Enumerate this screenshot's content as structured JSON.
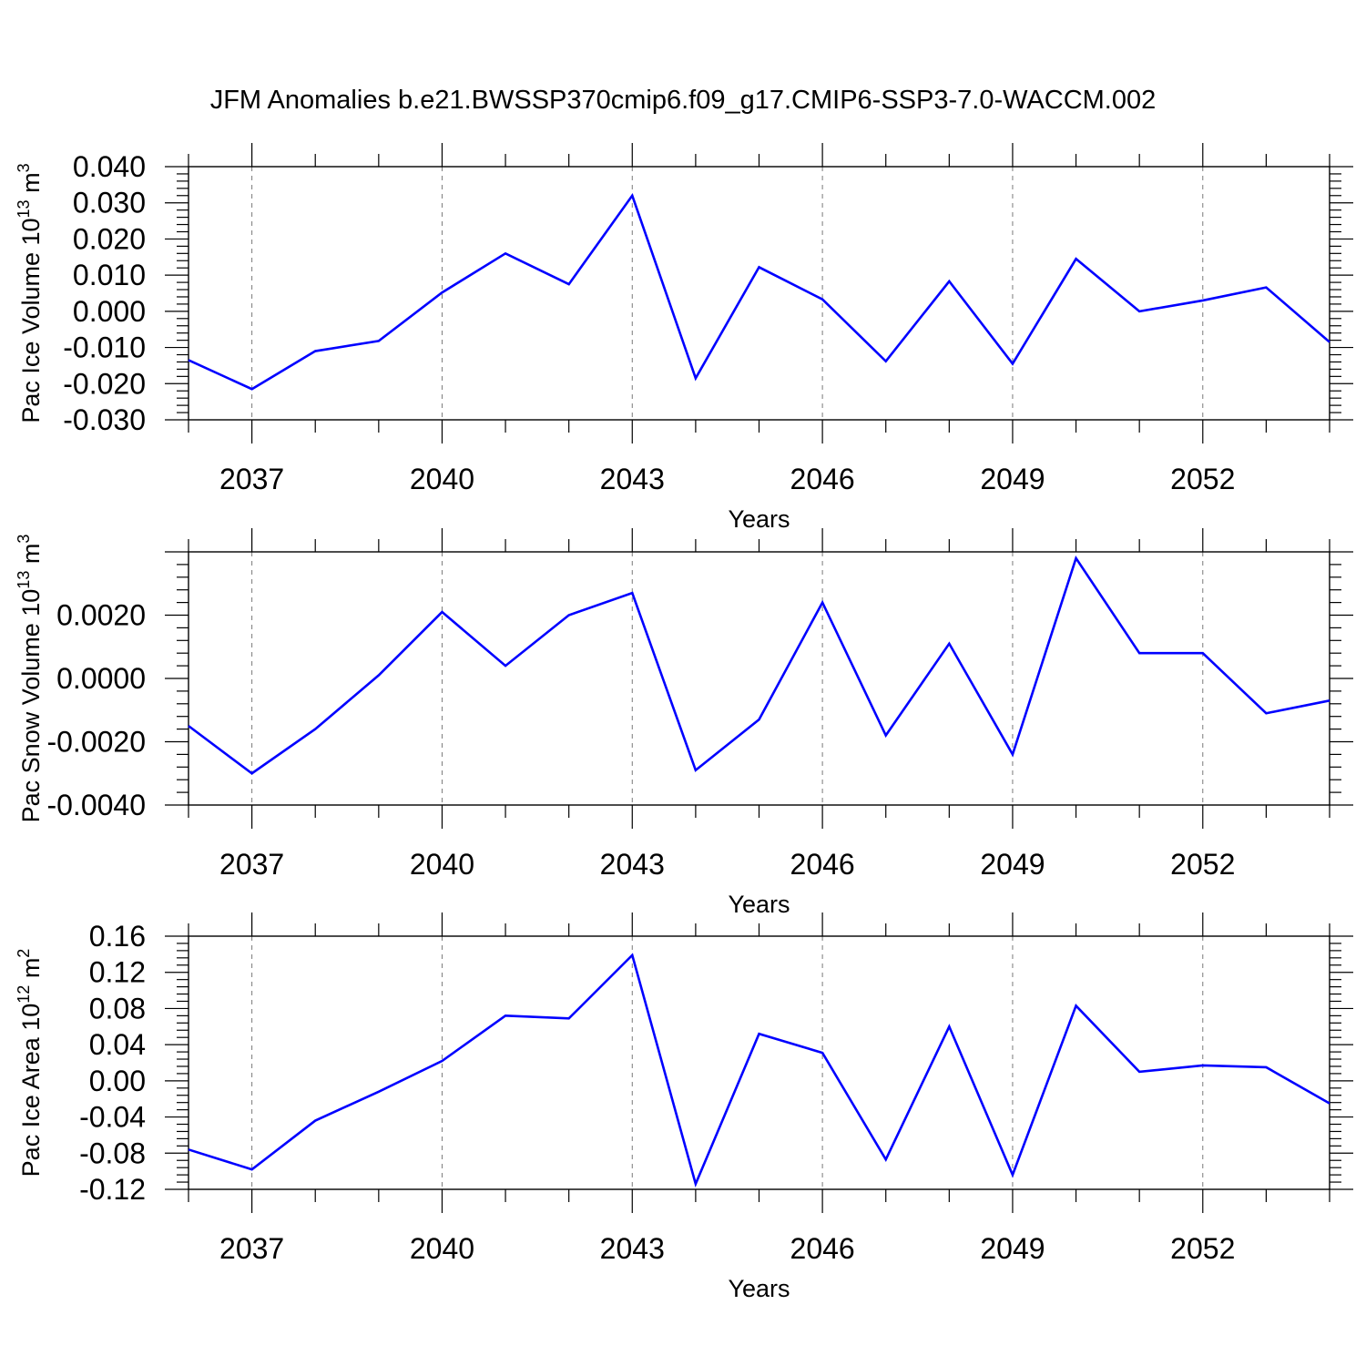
{
  "title": "JFM Anomalies b.e21.BWSSP370cmip6.f09_g17.CMIP6-SSP3-7.0-WACCM.002",
  "line_color": "#0000ff",
  "chart_data": [
    {
      "type": "line",
      "ylabel_text": "Pac Ice Volume 10",
      "ylabel_exp": "13",
      "ylabel_unit": " m",
      "ylabel_unit_exp": "3",
      "xlabel": "Years",
      "xlim": [
        2036,
        2054
      ],
      "ylim": [
        -0.03,
        0.04
      ],
      "yticks": [
        -0.03,
        -0.02,
        -0.01,
        0.0,
        0.01,
        0.02,
        0.03,
        0.04
      ],
      "ytick_labels": [
        "-0.030",
        "-0.020",
        "-0.010",
        "0.000",
        "0.010",
        "0.020",
        "0.030",
        "0.040"
      ],
      "xticks": [
        2037,
        2040,
        2043,
        2046,
        2049,
        2052
      ],
      "xtick_labels": [
        "2037",
        "2040",
        "2043",
        "2046",
        "2049",
        "2052"
      ],
      "grid": "vertical dashed at major x ticks",
      "x": [
        2036,
        2037,
        2038,
        2039,
        2040,
        2041,
        2042,
        2043,
        2044,
        2045,
        2046,
        2047,
        2048,
        2049,
        2050,
        2051,
        2052,
        2053,
        2054
      ],
      "y": [
        -0.0135,
        -0.0215,
        -0.011,
        -0.0082,
        0.0052,
        0.016,
        0.0075,
        0.032,
        -0.0185,
        0.0122,
        0.0033,
        -0.0138,
        0.0083,
        -0.0145,
        0.0145,
        0.0,
        0.003,
        0.0066,
        -0.0085
      ]
    },
    {
      "type": "line",
      "ylabel_text": "Pac Snow Volume 10",
      "ylabel_exp": "13",
      "ylabel_unit": " m",
      "ylabel_unit_exp": "3",
      "xlabel": "Years",
      "xlim": [
        2036,
        2054
      ],
      "ylim": [
        -0.004,
        0.004
      ],
      "yticks": [
        -0.004,
        -0.002,
        0.0,
        0.002
      ],
      "ytick_labels": [
        "-0.0040",
        "-0.0020",
        "0.0000",
        "0.0020"
      ],
      "xticks": [
        2037,
        2040,
        2043,
        2046,
        2049,
        2052
      ],
      "xtick_labels": [
        "2037",
        "2040",
        "2043",
        "2046",
        "2049",
        "2052"
      ],
      "grid": "vertical dashed at major x ticks",
      "x": [
        2036,
        2037,
        2038,
        2039,
        2040,
        2041,
        2042,
        2043,
        2044,
        2045,
        2046,
        2047,
        2048,
        2049,
        2050,
        2051,
        2052,
        2053,
        2054
      ],
      "y": [
        -0.0015,
        -0.003,
        -0.0016,
        0.0001,
        0.0021,
        0.0004,
        0.002,
        0.0027,
        -0.0029,
        -0.0013,
        0.0024,
        -0.0018,
        0.0011,
        -0.0024,
        0.0038,
        0.0008,
        0.0008,
        -0.0011,
        -0.0007
      ]
    },
    {
      "type": "line",
      "ylabel_text": "Pac Ice Area 10",
      "ylabel_exp": "12",
      "ylabel_unit": " m",
      "ylabel_unit_exp": "2",
      "xlabel": "Years",
      "xlim": [
        2036,
        2054
      ],
      "ylim": [
        -0.12,
        0.16
      ],
      "yticks": [
        -0.12,
        -0.08,
        -0.04,
        0.0,
        0.04,
        0.08,
        0.12,
        0.16
      ],
      "ytick_labels": [
        "-0.12",
        "-0.08",
        "-0.04",
        "0.00",
        "0.04",
        "0.08",
        "0.12",
        "0.16"
      ],
      "xticks": [
        2037,
        2040,
        2043,
        2046,
        2049,
        2052
      ],
      "xtick_labels": [
        "2037",
        "2040",
        "2043",
        "2046",
        "2049",
        "2052"
      ],
      "grid": "vertical dashed at major x ticks",
      "x": [
        2036,
        2037,
        2038,
        2039,
        2040,
        2041,
        2042,
        2043,
        2044,
        2045,
        2046,
        2047,
        2048,
        2049,
        2050,
        2051,
        2052,
        2053,
        2054
      ],
      "y": [
        -0.076,
        -0.098,
        -0.044,
        -0.012,
        0.022,
        0.072,
        0.069,
        0.139,
        -0.114,
        0.052,
        0.031,
        -0.087,
        0.06,
        -0.104,
        0.083,
        0.01,
        0.017,
        0.015,
        -0.025
      ]
    }
  ]
}
